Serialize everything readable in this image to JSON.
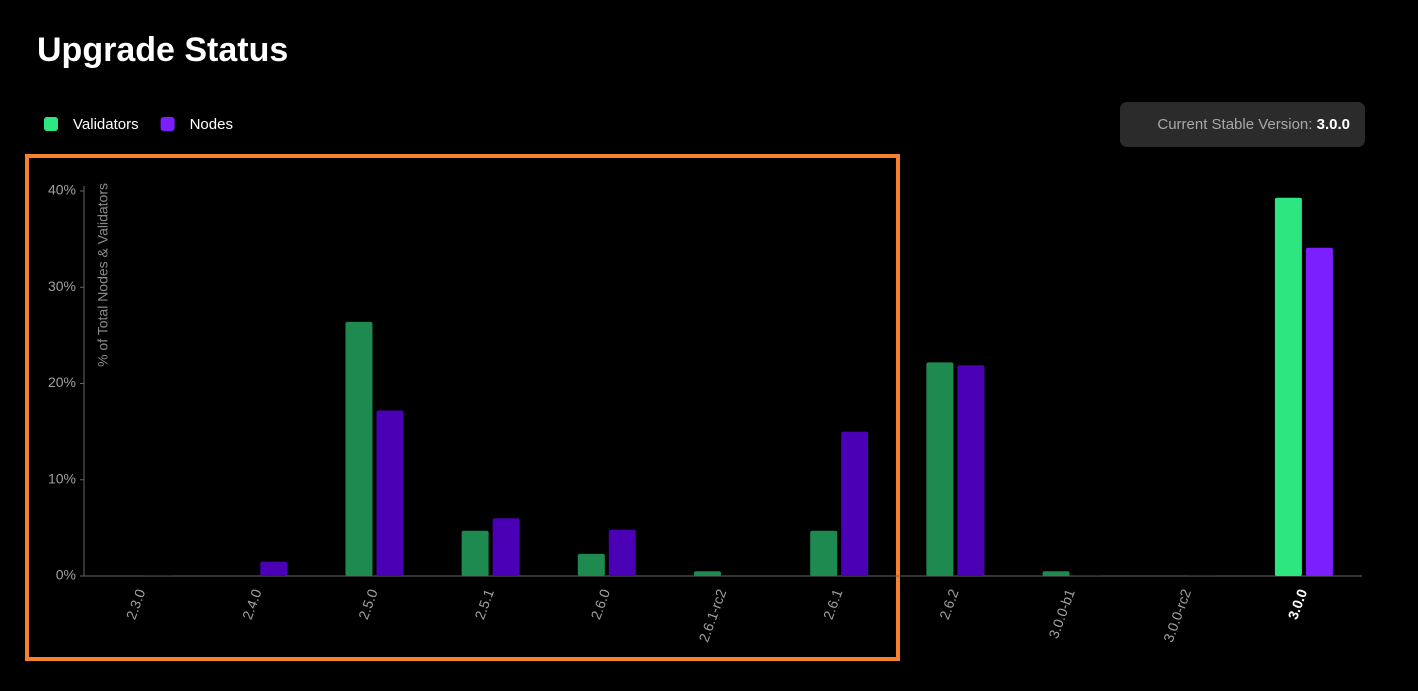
{
  "chart_data": {
    "type": "bar",
    "title": "Upgrade Status",
    "ylabel": "% of Total Nodes & Validators",
    "current_version_label": "Current Stable Version:",
    "current_version": "3.0.0",
    "categories": [
      "2.3.0",
      "2.4.0",
      "2.5.0",
      "2.5.1",
      "2.6.0",
      "2.6.1-rc2",
      "2.6.1",
      "2.6.2",
      "3.0.0-b1",
      "3.0.0-rc2",
      "3.0.0"
    ],
    "series": [
      {
        "name": "Validators",
        "color": "#2ee67f",
        "base_color": "#1f8a50",
        "values": [
          0,
          0,
          26.4,
          4.7,
          2.3,
          0.5,
          4.7,
          22.2,
          0.5,
          0,
          39.3
        ]
      },
      {
        "name": "Nodes",
        "color": "#7b1fff",
        "base_color": "#4a00b4",
        "values": [
          0.1,
          1.5,
          17.2,
          6.0,
          4.8,
          0,
          15.0,
          21.9,
          0.1,
          0.1,
          34.1
        ]
      }
    ],
    "ylim": [
      0,
      40
    ],
    "yticks": [
      {
        "value": 0,
        "label": "0%"
      },
      {
        "value": 10,
        "label": "10%"
      },
      {
        "value": 20,
        "label": "20%"
      },
      {
        "value": 30,
        "label": "30%"
      },
      {
        "value": 40,
        "label": "40%"
      }
    ],
    "grid": false
  }
}
